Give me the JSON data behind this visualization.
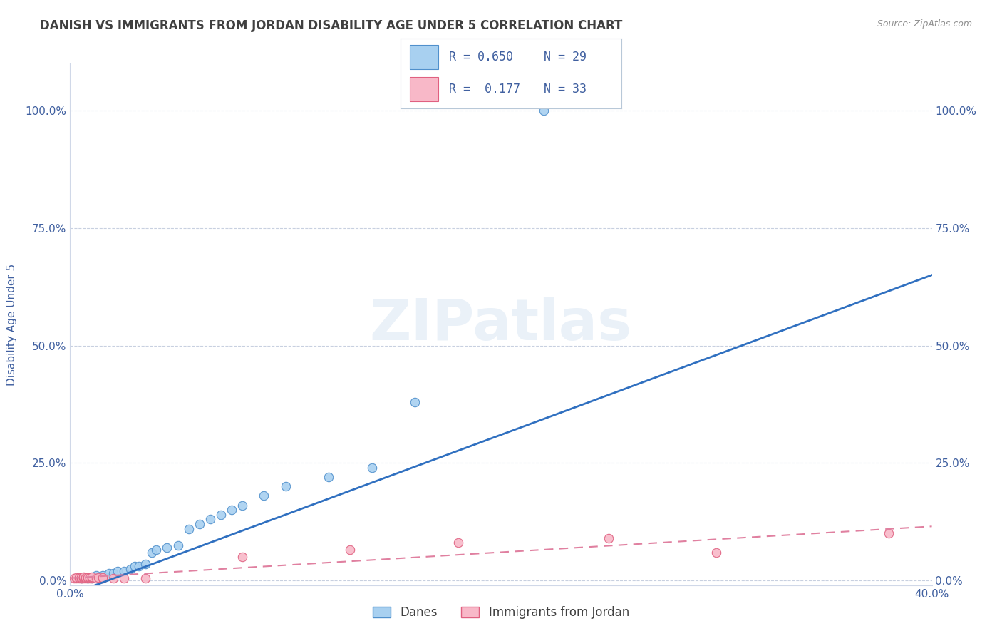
{
  "title": "DANISH VS IMMIGRANTS FROM JORDAN DISABILITY AGE UNDER 5 CORRELATION CHART",
  "source": "Source: ZipAtlas.com",
  "ylabel": "Disability Age Under 5",
  "xlim": [
    0.0,
    0.4
  ],
  "ylim": [
    -0.01,
    1.1
  ],
  "xtick_pos": [
    0.0,
    0.4
  ],
  "xtick_labels": [
    "0.0%",
    "40.0%"
  ],
  "ytick_pos": [
    0.0,
    0.25,
    0.5,
    0.75,
    1.0
  ],
  "ytick_labels": [
    "0.0%",
    "25.0%",
    "50.0%",
    "75.0%",
    "100.0%"
  ],
  "danes_color": "#a8d0f0",
  "jordan_color": "#f8b8c8",
  "danes_edge_color": "#5090cc",
  "jordan_edge_color": "#e06080",
  "danes_line_color": "#3070c0",
  "jordan_line_color": "#e080a0",
  "danes_R": 0.65,
  "danes_N": 29,
  "jordan_R": 0.177,
  "jordan_N": 33,
  "danes_x": [
    0.005,
    0.008,
    0.01,
    0.012,
    0.015,
    0.018,
    0.02,
    0.022,
    0.025,
    0.028,
    0.03,
    0.032,
    0.035,
    0.038,
    0.04,
    0.045,
    0.05,
    0.055,
    0.06,
    0.065,
    0.07,
    0.075,
    0.08,
    0.09,
    0.1,
    0.12,
    0.14,
    0.16,
    0.22
  ],
  "danes_y": [
    0.005,
    0.005,
    0.005,
    0.01,
    0.01,
    0.015,
    0.015,
    0.02,
    0.02,
    0.025,
    0.03,
    0.03,
    0.035,
    0.06,
    0.065,
    0.07,
    0.075,
    0.11,
    0.12,
    0.13,
    0.14,
    0.15,
    0.16,
    0.18,
    0.2,
    0.22,
    0.24,
    0.38,
    1.0
  ],
  "jordan_x": [
    0.002,
    0.003,
    0.003,
    0.004,
    0.004,
    0.005,
    0.005,
    0.005,
    0.006,
    0.006,
    0.006,
    0.007,
    0.007,
    0.008,
    0.008,
    0.009,
    0.009,
    0.01,
    0.01,
    0.01,
    0.012,
    0.013,
    0.015,
    0.015,
    0.02,
    0.025,
    0.035,
    0.08,
    0.13,
    0.18,
    0.25,
    0.3,
    0.38
  ],
  "jordan_y": [
    0.005,
    0.005,
    0.006,
    0.005,
    0.006,
    0.005,
    0.005,
    0.006,
    0.005,
    0.006,
    0.007,
    0.005,
    0.006,
    0.005,
    0.006,
    0.005,
    0.006,
    0.005,
    0.006,
    0.007,
    0.005,
    0.006,
    0.005,
    0.006,
    0.005,
    0.005,
    0.005,
    0.05,
    0.065,
    0.08,
    0.09,
    0.06,
    0.1
  ],
  "danes_trend_x0": 0.0,
  "danes_trend_y0": -0.03,
  "danes_trend_x1": 0.4,
  "danes_trend_y1": 0.65,
  "jordan_trend_x0": 0.0,
  "jordan_trend_y0": 0.005,
  "jordan_trend_x1": 0.4,
  "jordan_trend_y1": 0.115,
  "watermark": "ZIPatlas",
  "background_color": "#ffffff",
  "grid_color": "#c8d0e0",
  "title_color": "#404040",
  "axis_color": "#4060a0",
  "marker_size": 80,
  "legend_danes_label": "Danes",
  "legend_jordan_label": "Immigrants from Jordan"
}
